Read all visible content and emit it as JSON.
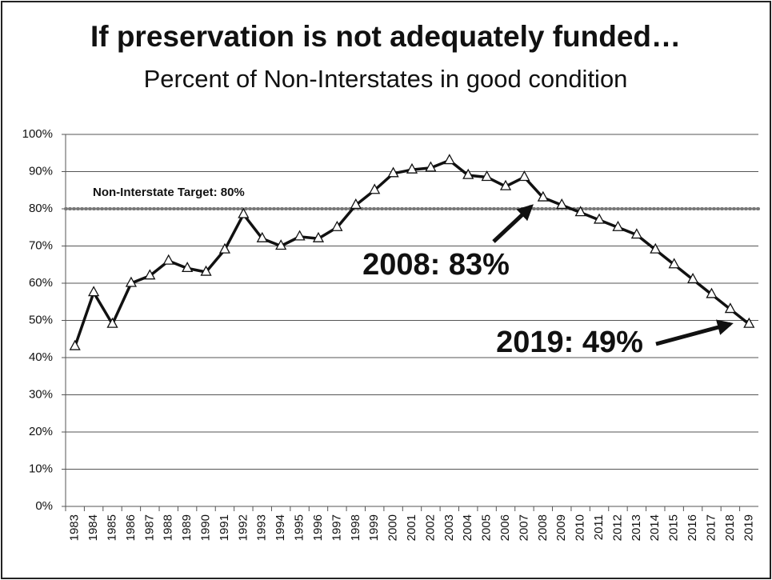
{
  "chart_data": {
    "type": "line",
    "title": "If preservation is not adequately funded…",
    "subtitle": "Percent of Non-Interstates in good condition",
    "categories": [
      "1983",
      "1984",
      "1985",
      "1986",
      "1987",
      "1988",
      "1989",
      "1990",
      "1991",
      "1992",
      "1993",
      "1994",
      "1995",
      "1996",
      "1997",
      "1998",
      "1999",
      "2000",
      "2001",
      "2002",
      "2003",
      "2004",
      "2005",
      "2006",
      "2007",
      "2008",
      "2009",
      "2010",
      "2011",
      "2012",
      "2013",
      "2014",
      "2015",
      "2016",
      "2017",
      "2018",
      "2019"
    ],
    "series": [
      {
        "color": "#111111",
        "values": [
          43,
          57.5,
          49,
          60,
          62,
          66,
          64,
          63,
          69,
          78.5,
          72,
          70,
          72.5,
          72,
          75,
          81,
          85,
          89.5,
          90.5,
          91,
          93,
          89,
          88.5,
          86,
          88.5,
          83,
          81,
          79,
          77,
          75,
          73,
          69,
          65,
          61,
          57,
          53,
          49
        ]
      }
    ],
    "ylim": [
      0,
      100
    ],
    "yticks": [
      {
        "value": 0,
        "label": "0%"
      },
      {
        "value": 10,
        "label": "10%"
      },
      {
        "value": 20,
        "label": "20%"
      },
      {
        "value": 30,
        "label": "30%"
      },
      {
        "value": 40,
        "label": "40%"
      },
      {
        "value": 50,
        "label": "50%"
      },
      {
        "value": 60,
        "label": "60%"
      },
      {
        "value": 70,
        "label": "70%"
      },
      {
        "value": 80,
        "label": "80%"
      },
      {
        "value": 90,
        "label": "90%"
      },
      {
        "value": 100,
        "label": "100%"
      }
    ],
    "grid": true,
    "target": {
      "value": 80,
      "label": "Non-Interstate Target: 80%",
      "color": "#777777"
    },
    "annotations": [
      "2008: 83%",
      "2019: 49%"
    ]
  }
}
